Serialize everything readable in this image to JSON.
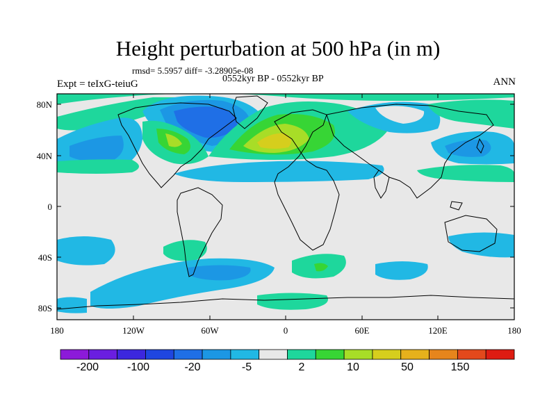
{
  "title": "Height perturbation at 500 hPa (in m)",
  "subtitle": "rmsd= 5.5957 diff= -3.28905e-08",
  "left_label": "Expt = teIxG-teiuG",
  "center_label": "0552kyr BP - 0552kyr BP",
  "right_label": "ANN",
  "map": {
    "lat_ticks": [
      "80N",
      "40N",
      "0",
      "40S",
      "80S"
    ],
    "lon_ticks": [
      "180",
      "120W",
      "60W",
      "0",
      "60E",
      "120E",
      "180"
    ]
  },
  "colorbar": {
    "colors": [
      "#8c1ad9",
      "#6a1ee0",
      "#3c27de",
      "#1f46e0",
      "#1f6fe6",
      "#1c97e4",
      "#21b8e4",
      "#e8e8e8",
      "#1ed79c",
      "#37d535",
      "#a8dd27",
      "#d6ce1d",
      "#e6b11c",
      "#e6851c",
      "#e3491c",
      "#de1c12"
    ],
    "labels": [
      "-200",
      "-100",
      "-20",
      "-5",
      "2",
      "10",
      "50",
      "150"
    ]
  }
}
